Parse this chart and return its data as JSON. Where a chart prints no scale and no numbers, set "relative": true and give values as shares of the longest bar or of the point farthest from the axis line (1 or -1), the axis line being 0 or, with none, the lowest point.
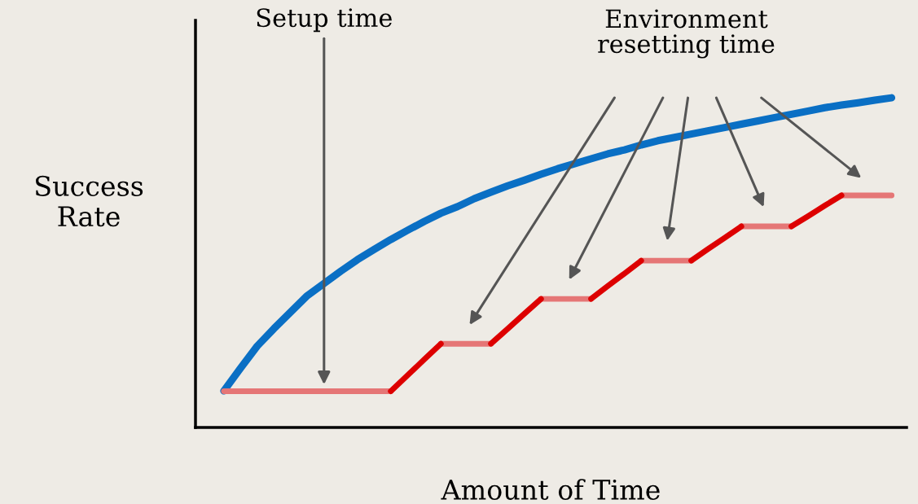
{
  "chart_data": {
    "type": "line",
    "relative": true,
    "xlabel": "Amount of Time",
    "ylabel": "Success\nRate",
    "categories": [
      null,
      null,
      null,
      null,
      null,
      null,
      null,
      null,
      null,
      null,
      null,
      null,
      null,
      null,
      null,
      null,
      null,
      null,
      null,
      null,
      null,
      null,
      null,
      null,
      null,
      null,
      null,
      null,
      null,
      null,
      null,
      null,
      null,
      null,
      null,
      null,
      null,
      null,
      null,
      null,
      null
    ],
    "series": [
      {
        "color": "#0a6fc4",
        "values": [
          0.111,
          0.18,
          0.247,
          0.3,
          0.35,
          0.4,
          0.437,
          0.474,
          0.509,
          0.54,
          0.57,
          0.598,
          0.625,
          0.65,
          0.67,
          0.694,
          0.714,
          0.733,
          0.75,
          0.768,
          0.785,
          0.8,
          0.815,
          0.83,
          0.842,
          0.857,
          0.87,
          0.88,
          0.89,
          0.9,
          0.91,
          0.92,
          0.93,
          0.94,
          0.95,
          0.96,
          0.97,
          0.978,
          0.985,
          0.993,
          1.0
        ]
      },
      {
        "color": "#e57676",
        "values": [
          0.11,
          0.11,
          0.11,
          0.11,
          0.11,
          0.11,
          0.11,
          0.11,
          0.11,
          0.11,
          0.11,
          null,
          null,
          0.254,
          0.254,
          0.254,
          0.254,
          null,
          null,
          0.39,
          0.39,
          0.39,
          0.39,
          null,
          null,
          0.506,
          0.506,
          0.506,
          0.506,
          null,
          null,
          0.61,
          0.61,
          0.61,
          0.61,
          null,
          null,
          0.704,
          0.704,
          0.704,
          0.704
        ]
      },
      {
        "color": "#dd0000",
        "values": [
          null,
          null,
          null,
          null,
          null,
          null,
          null,
          null,
          null,
          null,
          0.11,
          0.158,
          0.206,
          0.254,
          null,
          null,
          0.254,
          0.299,
          0.345,
          0.39,
          null,
          null,
          0.39,
          0.429,
          0.467,
          0.506,
          null,
          null,
          0.506,
          0.541,
          0.575,
          0.61,
          null,
          null,
          0.61,
          0.641,
          0.673,
          0.704,
          null,
          null,
          null
        ]
      }
    ],
    "annotations": [
      "Setup time",
      "Environment\nresetting time"
    ],
    "grid": false,
    "marker": "none",
    "line_style": "solid"
  }
}
